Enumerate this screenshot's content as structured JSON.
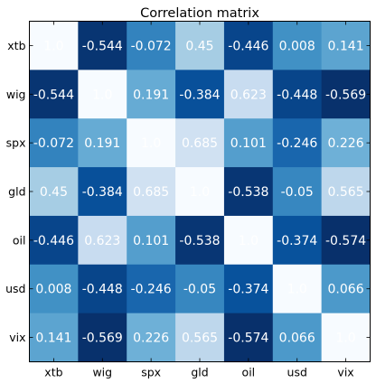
{
  "chart_data": {
    "type": "heatmap",
    "title": "Correlation matrix",
    "x_labels": [
      "xtb",
      "wig",
      "spx",
      "gld",
      "oil",
      "usd",
      "vix"
    ],
    "y_labels": [
      "xtb",
      "wig",
      "spx",
      "gld",
      "oil",
      "usd",
      "vix"
    ],
    "values": [
      [
        1.0,
        -0.544,
        -0.072,
        0.45,
        -0.446,
        0.008,
        0.141
      ],
      [
        -0.544,
        1.0,
        0.191,
        -0.384,
        0.623,
        -0.448,
        -0.569
      ],
      [
        -0.072,
        0.191,
        1.0,
        0.685,
        0.101,
        -0.246,
        0.226
      ],
      [
        0.45,
        -0.384,
        0.685,
        1.0,
        -0.538,
        -0.05,
        0.565
      ],
      [
        -0.446,
        0.623,
        0.101,
        -0.538,
        1.0,
        -0.374,
        -0.574
      ],
      [
        0.008,
        -0.448,
        -0.246,
        -0.05,
        -0.374,
        1.0,
        0.066
      ],
      [
        0.141,
        -0.569,
        0.226,
        0.565,
        -0.574,
        0.066,
        1.0
      ]
    ],
    "value_labels": [
      [
        "1.0",
        "-0.544",
        "-0.072",
        "0.45",
        "-0.446",
        "0.008",
        "0.141"
      ],
      [
        "-0.544",
        "1.0",
        "0.191",
        "-0.384",
        "0.623",
        "-0.448",
        "-0.569"
      ],
      [
        "-0.072",
        "0.191",
        "1.0",
        "0.685",
        "0.101",
        "-0.246",
        "0.226"
      ],
      [
        "0.45",
        "-0.384",
        "0.685",
        "1.0",
        "-0.538",
        "-0.05",
        "0.565"
      ],
      [
        "-0.446",
        "0.623",
        "0.101",
        "-0.538",
        "1.0",
        "-0.374",
        "-0.574"
      ],
      [
        "0.008",
        "-0.448",
        "-0.246",
        "-0.05",
        "-0.374",
        "1.0",
        "0.066"
      ],
      [
        "0.141",
        "-0.569",
        "0.226",
        "0.565",
        "-0.574",
        "0.066",
        "1.0"
      ]
    ],
    "colormap": "Blues_r",
    "color_range": [
      -0.574,
      1.0
    ],
    "cell_text_color": "#ffffff",
    "legend": "none",
    "grid": false
  }
}
